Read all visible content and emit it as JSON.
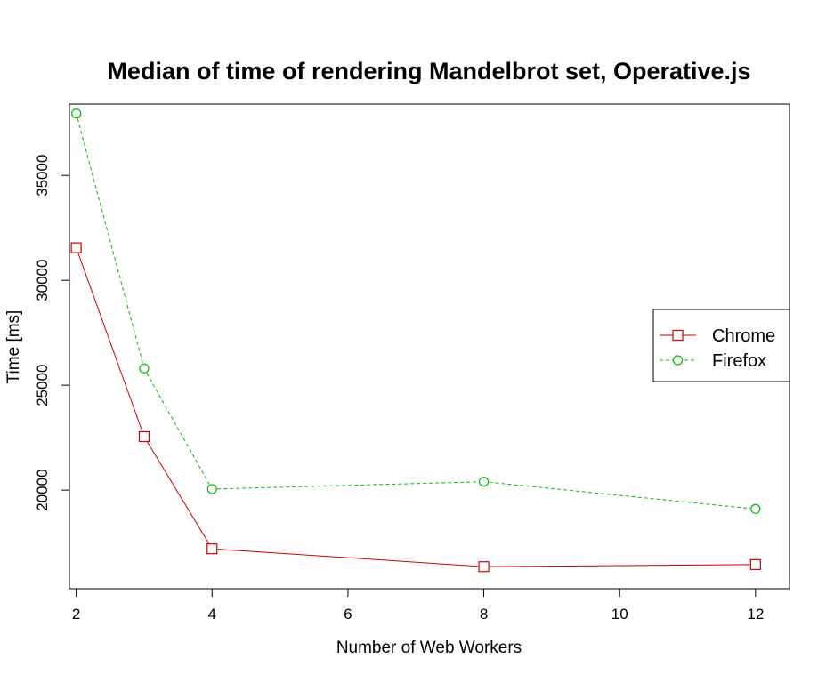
{
  "chart_data": {
    "type": "line",
    "title": "Median of time of rendering Mandelbrot set, Operative.js",
    "xlabel": "Number of Web Workers",
    "ylabel": "Time [ms]",
    "x": [
      2,
      3,
      4,
      8,
      12
    ],
    "xlim": [
      1.9,
      12.5
    ],
    "ylim": [
      15300,
      38400
    ],
    "x_ticks": [
      2,
      4,
      6,
      8,
      10,
      12
    ],
    "y_ticks": [
      20000,
      25000,
      30000,
      35000
    ],
    "grid": false,
    "legend_position": "right",
    "series": [
      {
        "name": "Chrome",
        "color": "#cc0000",
        "marker": "square",
        "line_style": "solid",
        "values": [
          31550,
          22550,
          17200,
          16350,
          16450
        ]
      },
      {
        "name": "Firefox",
        "color": "#00bb00",
        "marker": "circle",
        "line_style": "dashed",
        "values": [
          37950,
          25800,
          20050,
          20400,
          19100
        ]
      }
    ]
  }
}
